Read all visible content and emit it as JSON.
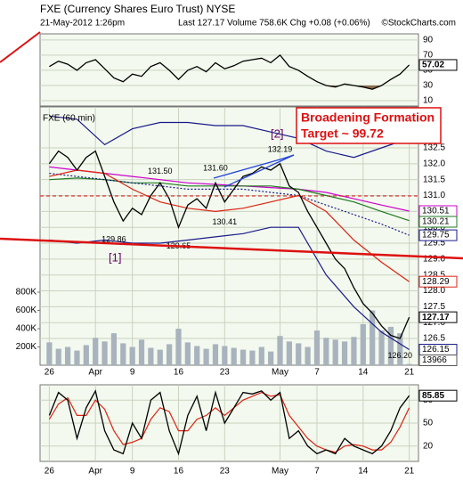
{
  "header": {
    "title": "FXE (Currency Shares Euro Trust) NYSE",
    "date": "21-May-2012 1:26pm",
    "quote": "Last 127.17  Volume 758.6K  Chg +0.08 (+0.06%)",
    "credit": "©StockCharts.com"
  },
  "chart_data": [
    {
      "type": "line",
      "x": [
        0,
        1,
        2,
        3,
        4,
        5,
        6,
        7,
        8,
        9,
        10,
        11,
        12,
        13,
        14,
        15,
        16,
        17,
        18,
        19,
        20,
        21,
        22,
        23,
        24,
        25,
        26,
        27,
        28,
        29,
        30,
        31,
        32,
        33,
        34,
        35,
        36,
        37,
        38,
        39
      ],
      "xlim": [
        -1,
        40
      ],
      "ylim": [
        3,
        98
      ],
      "yticks": [
        10,
        30,
        50,
        70,
        90
      ],
      "fill_below": 30,
      "grid": true,
      "series": [
        {
          "color": "#000000",
          "value_tag": true,
          "values": [
            55,
            62,
            58,
            50,
            60,
            64,
            52,
            40,
            35,
            45,
            42,
            55,
            60,
            50,
            38,
            50,
            55,
            48,
            60,
            52,
            56,
            62,
            64,
            66,
            60,
            70,
            55,
            50,
            42,
            35,
            30,
            28,
            32,
            30,
            28,
            25,
            30,
            38,
            45,
            57.02
          ]
        }
      ]
    },
    {
      "type": "line",
      "title": "FXE (60 min)",
      "x": [
        0,
        1,
        2,
        3,
        4,
        5,
        6,
        7,
        8,
        9,
        10,
        11,
        12,
        13,
        14,
        15,
        16,
        17,
        18,
        19,
        20,
        21,
        22,
        23,
        24,
        25,
        26,
        27,
        28,
        29,
        30,
        31,
        32,
        33,
        34,
        35,
        36,
        37,
        38,
        39
      ],
      "xlim": [
        -1,
        40
      ],
      "xticks": [
        {
          "value": 0,
          "label": "26"
        },
        {
          "value": 5,
          "label": "Apr"
        },
        {
          "value": 9,
          "label": "9"
        },
        {
          "value": 14,
          "label": "16"
        },
        {
          "value": 19,
          "label": "23"
        },
        {
          "value": 25,
          "label": "May"
        },
        {
          "value": 29,
          "label": "7"
        },
        {
          "value": 34,
          "label": "14"
        },
        {
          "value": 39,
          "label": "21"
        }
      ],
      "ylim": [
        125.66,
        133.79
      ],
      "yticks": [
        {
          "value": 126.5,
          "label": "126.5"
        },
        {
          "value": 127,
          "label": "127.0"
        },
        127.5,
        {
          "value": 128,
          "label": "128.0"
        },
        128.5,
        {
          "value": 129,
          "label": "129.0"
        },
        129.5,
        {
          "value": 130,
          "label": "130.0"
        },
        130.5,
        {
          "value": 131,
          "label": "131.0"
        },
        131.5,
        {
          "value": 132,
          "label": "132.0"
        },
        132.5
      ],
      "y2lim": [
        0,
        2830000
      ],
      "y2ticks": [
        {
          "value": 200000,
          "label": "200K"
        },
        {
          "value": 400000,
          "label": "400K"
        },
        {
          "value": 600000,
          "label": "600K"
        },
        {
          "value": 800000,
          "label": "800K"
        }
      ],
      "grid": true,
      "series": [
        {
          "type": "bar",
          "axis": "y2",
          "color": "#a9b3bd",
          "value_tag": true,
          "values": [
            250000,
            180000,
            200000,
            160000,
            220000,
            300000,
            260000,
            350000,
            240000,
            200000,
            280000,
            190000,
            170000,
            230000,
            400000,
            250000,
            210000,
            180000,
            230000,
            210000,
            190000,
            170000,
            160000,
            200000,
            150000,
            320000,
            260000,
            240000,
            200000,
            380000,
            300000,
            280000,
            260000,
            310000,
            450000,
            600000,
            380000,
            420000,
            350000,
            13966
          ]
        },
        {
          "color": "#1a1a8c",
          "x": [
            0,
            3,
            6,
            9,
            12,
            15,
            18,
            21,
            24,
            27,
            30,
            33,
            36,
            39
          ],
          "values": [
            133.5,
            133.4,
            132.6,
            133.1,
            133.3,
            133.3,
            133.2,
            133.2,
            133.0,
            132.8,
            132.4,
            132.2,
            132.5,
            132.8
          ]
        },
        {
          "color": "#1a1a8c",
          "value_tag": true,
          "x": [
            0,
            3,
            6,
            9,
            12,
            15,
            18,
            21,
            24,
            27,
            30,
            33,
            36,
            39
          ],
          "values": [
            129.6,
            129.5,
            129.6,
            129.5,
            129.5,
            129.6,
            129.7,
            129.8,
            130.0,
            130.0,
            128.5,
            127.5,
            126.7,
            126.15
          ]
        },
        {
          "color": "#cc00cc",
          "value_tag": true,
          "x": [
            0,
            3,
            6,
            9,
            12,
            15,
            18,
            21,
            24,
            27,
            30,
            33,
            36,
            39
          ],
          "values": [
            131.9,
            131.8,
            131.7,
            131.6,
            131.5,
            131.4,
            131.35,
            131.3,
            131.25,
            131.2,
            131.1,
            130.9,
            130.7,
            130.51
          ]
        },
        {
          "color": "#1f7a1f",
          "value_tag": true,
          "x": [
            0,
            3,
            6,
            9,
            12,
            15,
            18,
            21,
            24,
            27,
            30,
            33,
            36,
            39
          ],
          "values": [
            131.5,
            131.55,
            131.5,
            131.4,
            131.4,
            131.3,
            131.3,
            131.3,
            131.3,
            131.2,
            131.0,
            130.8,
            130.5,
            130.21
          ]
        },
        {
          "color": "#1a1a8c",
          "dash": true,
          "value_tag": true,
          "x": [
            0,
            3,
            6,
            9,
            12,
            15,
            18,
            21,
            24,
            27,
            30,
            33,
            36,
            39
          ],
          "values": [
            131.7,
            131.6,
            131.5,
            131.4,
            131.3,
            131.2,
            131.2,
            131.2,
            131.1,
            131.0,
            130.7,
            130.4,
            130.1,
            129.75
          ]
        },
        {
          "color": "#dd2211",
          "value_tag": true,
          "x": [
            0,
            3,
            6,
            9,
            12,
            15,
            18,
            21,
            24,
            27,
            30,
            33,
            36,
            39
          ],
          "values": [
            131.6,
            131.8,
            131.7,
            131.2,
            130.8,
            130.6,
            130.5,
            130.6,
            130.8,
            131.0,
            130.5,
            129.6,
            128.9,
            128.29
          ]
        },
        {
          "color": "#000000",
          "value_tag": true,
          "values": [
            132.0,
            132.4,
            132.2,
            131.8,
            132.2,
            132.4,
            131.6,
            130.8,
            130.2,
            130.6,
            130.4,
            131.0,
            131.4,
            130.9,
            130.0,
            130.7,
            130.9,
            130.6,
            131.4,
            130.8,
            131.2,
            131.6,
            131.7,
            131.9,
            131.8,
            132.0,
            131.3,
            131.1,
            130.5,
            130.0,
            129.5,
            129.0,
            128.7,
            128.1,
            127.6,
            127.3,
            126.9,
            126.6,
            126.5,
            127.17
          ]
        }
      ],
      "annotations": [
        {
          "x": 7,
          "value": 129.86,
          "label": "129.86"
        },
        {
          "x": 12,
          "value": 131.5,
          "label": "131.50"
        },
        {
          "x": 14,
          "value": 129.65,
          "label": "129.65"
        },
        {
          "x": 18,
          "value": 131.6,
          "label": "131.60"
        },
        {
          "x": 19,
          "value": 130.41,
          "label": "130.41"
        },
        {
          "x": 25,
          "value": 132.19,
          "label": "132.19"
        },
        {
          "x": 38,
          "value": 126.2,
          "label": "126.20"
        }
      ],
      "notes": [
        "Broadening Formation",
        "Target ~ 99.72"
      ],
      "waves": [
        "[1]",
        "[2]"
      ]
    },
    {
      "type": "line",
      "x": [
        0,
        1,
        2,
        3,
        4,
        5,
        6,
        7,
        8,
        9,
        10,
        11,
        12,
        13,
        14,
        15,
        16,
        17,
        18,
        19,
        20,
        21,
        22,
        23,
        24,
        25,
        26,
        27,
        28,
        29,
        30,
        31,
        32,
        33,
        34,
        35,
        36,
        37,
        38,
        39
      ],
      "xlim": [
        -1,
        40
      ],
      "xticks": [
        {
          "value": 0,
          "label": "26"
        },
        {
          "value": 5,
          "label": "Apr"
        },
        {
          "value": 9,
          "label": "9"
        },
        {
          "value": 14,
          "label": "16"
        },
        {
          "value": 19,
          "label": "23"
        },
        {
          "value": 25,
          "label": "May"
        },
        {
          "value": 29,
          "label": "7"
        },
        {
          "value": 34,
          "label": "14"
        },
        {
          "value": 39,
          "label": "21"
        }
      ],
      "ylim": [
        0,
        100
      ],
      "yticks": [
        20,
        50,
        80
      ],
      "grid": true,
      "series": [
        {
          "color": "#dd2211",
          "values": [
            55,
            75,
            83,
            60,
            60,
            80,
            68,
            40,
            22,
            25,
            30,
            55,
            70,
            65,
            40,
            40,
            55,
            60,
            70,
            60,
            70,
            80,
            85,
            90,
            85,
            87,
            60,
            45,
            30,
            20,
            15,
            12,
            20,
            22,
            20,
            15,
            15,
            25,
            45,
            70
          ]
        },
        {
          "color": "#000000",
          "value_tag": true,
          "values": [
            60,
            90,
            80,
            30,
            70,
            92,
            40,
            15,
            10,
            50,
            30,
            80,
            90,
            40,
            10,
            60,
            85,
            40,
            90,
            50,
            70,
            90,
            88,
            92,
            80,
            90,
            30,
            40,
            20,
            10,
            15,
            10,
            30,
            20,
            15,
            10,
            20,
            40,
            70,
            85.85
          ]
        }
      ]
    }
  ]
}
